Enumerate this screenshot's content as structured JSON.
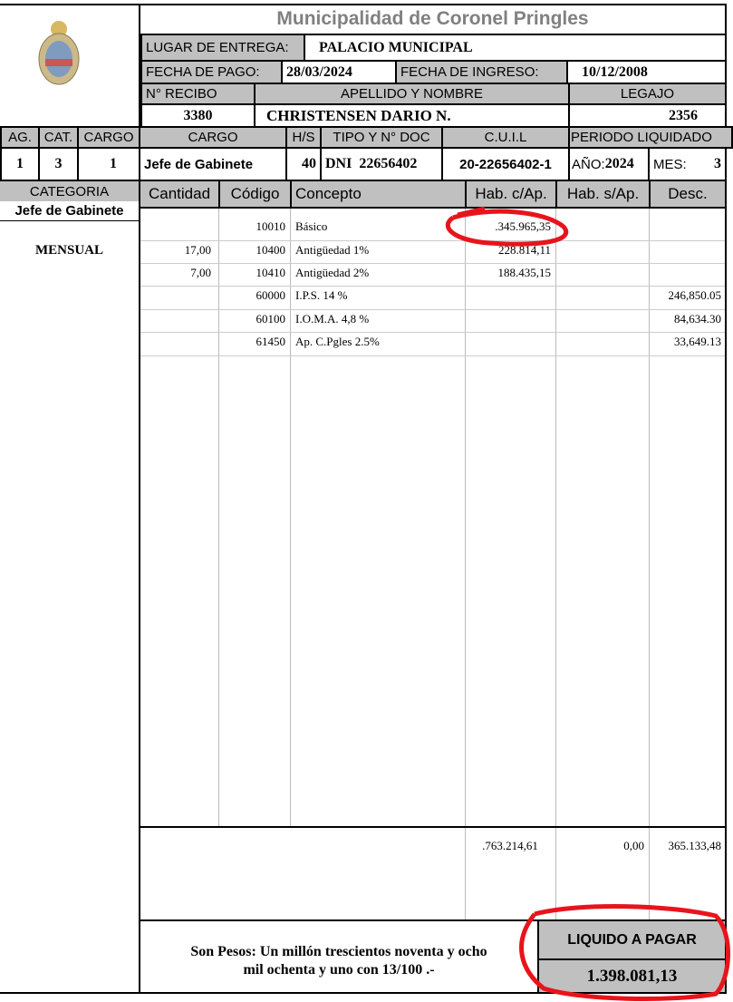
{
  "header": {
    "title": "Municipalidad de Coronel Pringles",
    "lugar_label": "LUGAR DE ENTREGA:",
    "lugar_value": "PALACIO MUNICIPAL",
    "fecha_pago_label": "FECHA DE PAGO:",
    "fecha_pago": "28/03/2024",
    "fecha_ingreso_label": "FECHA DE INGRESO:",
    "fecha_ingreso": "10/12/2008",
    "recibo_label": "N° RECIBO",
    "nombre_label": "APELLIDO Y NOMBRE",
    "legajo_label": "LEGAJO",
    "recibo": "3380",
    "nombre": "CHRISTENSEN DARIO N.",
    "legajo": "2356"
  },
  "info": {
    "ag_label": "AG.",
    "cat_label": "CAT.",
    "cargo_num_label": "CARGO",
    "cargo_label": "CARGO",
    "hs_label": "H/S",
    "doc_label": "TIPO Y N° DOC",
    "cuil_label": "C.U.I.L",
    "periodo_label": "PERIODO LIQUIDADO",
    "ag": "1",
    "cat": "3",
    "cargo_num": "1",
    "cargo": "Jefe de Gabinete",
    "hs": "40",
    "doc": "DNI  22656402",
    "cuil": "20-22656402-1",
    "anio_label": "AÑO:",
    "anio": "2024",
    "mes_label": "MES:",
    "mes": "3"
  },
  "categoria": {
    "label": "CATEGORIA",
    "value": "Jefe de Gabinete",
    "tipo": "MENSUAL"
  },
  "table": {
    "headers": [
      "Cantidad",
      "Código",
      "Concepto",
      "Hab. c/Ap.",
      "Hab. s/Ap.",
      "Desc."
    ],
    "rows": [
      {
        "cantidad": "",
        "codigo": "10010",
        "concepto": "Básico",
        "hab_c": ".345.965,35",
        "hab_s": "",
        "desc": ""
      },
      {
        "cantidad": "17,00",
        "codigo": "10400",
        "concepto": "Antigüedad 1%",
        "hab_c": "228.814,11",
        "hab_s": "",
        "desc": ""
      },
      {
        "cantidad": "7,00",
        "codigo": "10410",
        "concepto": "Antigüedad 2%",
        "hab_c": "188.435,15",
        "hab_s": "",
        "desc": ""
      },
      {
        "cantidad": "",
        "codigo": "60000",
        "concepto": "I.P.S. 14 %",
        "hab_c": "",
        "hab_s": "",
        "desc": "246,850.05"
      },
      {
        "cantidad": "",
        "codigo": "60100",
        "concepto": "I.O.M.A.  4,8 %",
        "hab_c": "",
        "hab_s": "",
        "desc": "84,634.30"
      },
      {
        "cantidad": "",
        "codigo": "61450",
        "concepto": "Ap. C.Pgles 2.5%",
        "hab_c": "",
        "hab_s": "",
        "desc": "33,649.13"
      }
    ],
    "totals": {
      "hab_c": ".763.214,61",
      "hab_s": "0,00",
      "desc": "365.133,48"
    }
  },
  "footer": {
    "son_pesos_line1": "Son Pesos:  Un millón trescientos noventa y ocho",
    "son_pesos_line2": "mil ochenta y uno con 13/100 .-",
    "liquido_label": "LIQUIDO A PAGAR",
    "liquido": "1.398.081,13"
  },
  "annotation_color": "#e8141c"
}
